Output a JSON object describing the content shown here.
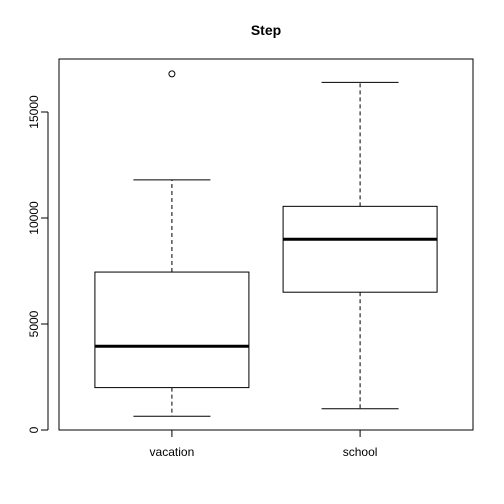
{
  "chart_data": {
    "type": "boxplot",
    "title": "Step",
    "xlabel": "",
    "ylabel": "",
    "ylim": [
      0,
      17500
    ],
    "yticks": [
      0,
      5000,
      10000,
      15000
    ],
    "ytick_labels": [
      "0",
      "5000",
      "10000",
      "15000"
    ],
    "categories": [
      "vacation",
      "school"
    ],
    "boxes": [
      {
        "category": "vacation",
        "whisker_low": 650,
        "q1": 2000,
        "median": 3950,
        "q3": 7450,
        "whisker_high": 11800,
        "outliers": [
          16800
        ]
      },
      {
        "category": "school",
        "whisker_low": 1000,
        "q1": 6500,
        "median": 9000,
        "q3": 10550,
        "whisker_high": 16400,
        "outliers": []
      }
    ]
  }
}
